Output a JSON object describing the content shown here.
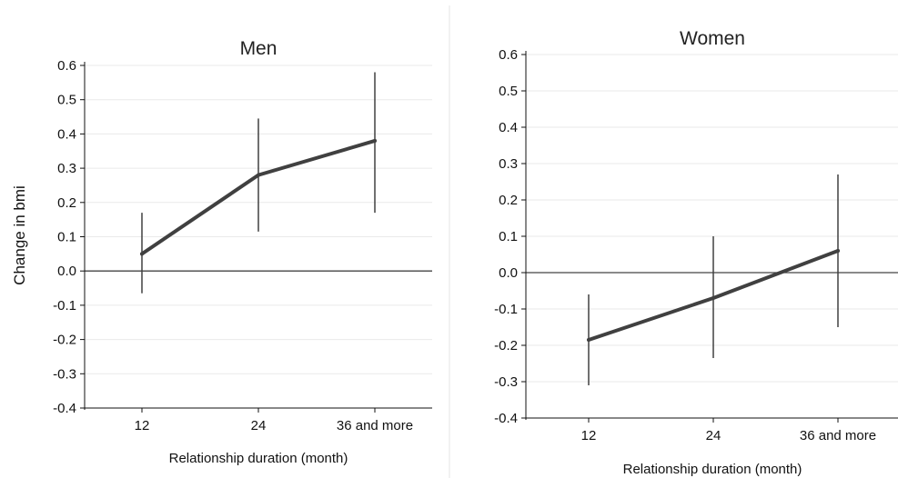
{
  "chart_data": [
    {
      "type": "line",
      "title": "Men",
      "xlabel": "Relationship duration (month)",
      "ylabel": "Change in bmi",
      "categories": [
        "12",
        "24",
        "36 and more"
      ],
      "ylim": [
        -0.4,
        0.6
      ],
      "yticks": [
        "0.6",
        "0.5",
        "0.4",
        "0.3",
        "0.2",
        "0.1",
        "0.0",
        "-0.1",
        "-0.2",
        "-0.3",
        "-0.4"
      ],
      "grid": true,
      "series": [
        {
          "values": [
            0.05,
            0.28,
            0.38
          ],
          "ci_low": [
            -0.065,
            0.115,
            0.17
          ],
          "ci_high": [
            0.17,
            0.445,
            0.58
          ]
        }
      ],
      "reference_line": 0.0
    },
    {
      "type": "line",
      "title": "Women",
      "xlabel": "Relationship duration (month)",
      "ylabel": "",
      "categories": [
        "12",
        "24",
        "36 and more"
      ],
      "ylim": [
        -0.4,
        0.6
      ],
      "yticks": [
        "0.6",
        "0.5",
        "0.4",
        "0.3",
        "0.2",
        "0.1",
        "0.0",
        "-0.1",
        "-0.2",
        "-0.3",
        "-0.4"
      ],
      "grid": true,
      "series": [
        {
          "values": [
            -0.185,
            -0.07,
            0.06
          ],
          "ci_low": [
            -0.31,
            -0.235,
            -0.15
          ],
          "ci_high": [
            -0.06,
            0.1,
            0.27
          ]
        }
      ],
      "reference_line": 0.0
    }
  ],
  "colors": {
    "line": "#404040",
    "errorbar": "#404040",
    "axis": "#111111",
    "grid": "#eaeaea",
    "divider": "#e6e6e6"
  }
}
